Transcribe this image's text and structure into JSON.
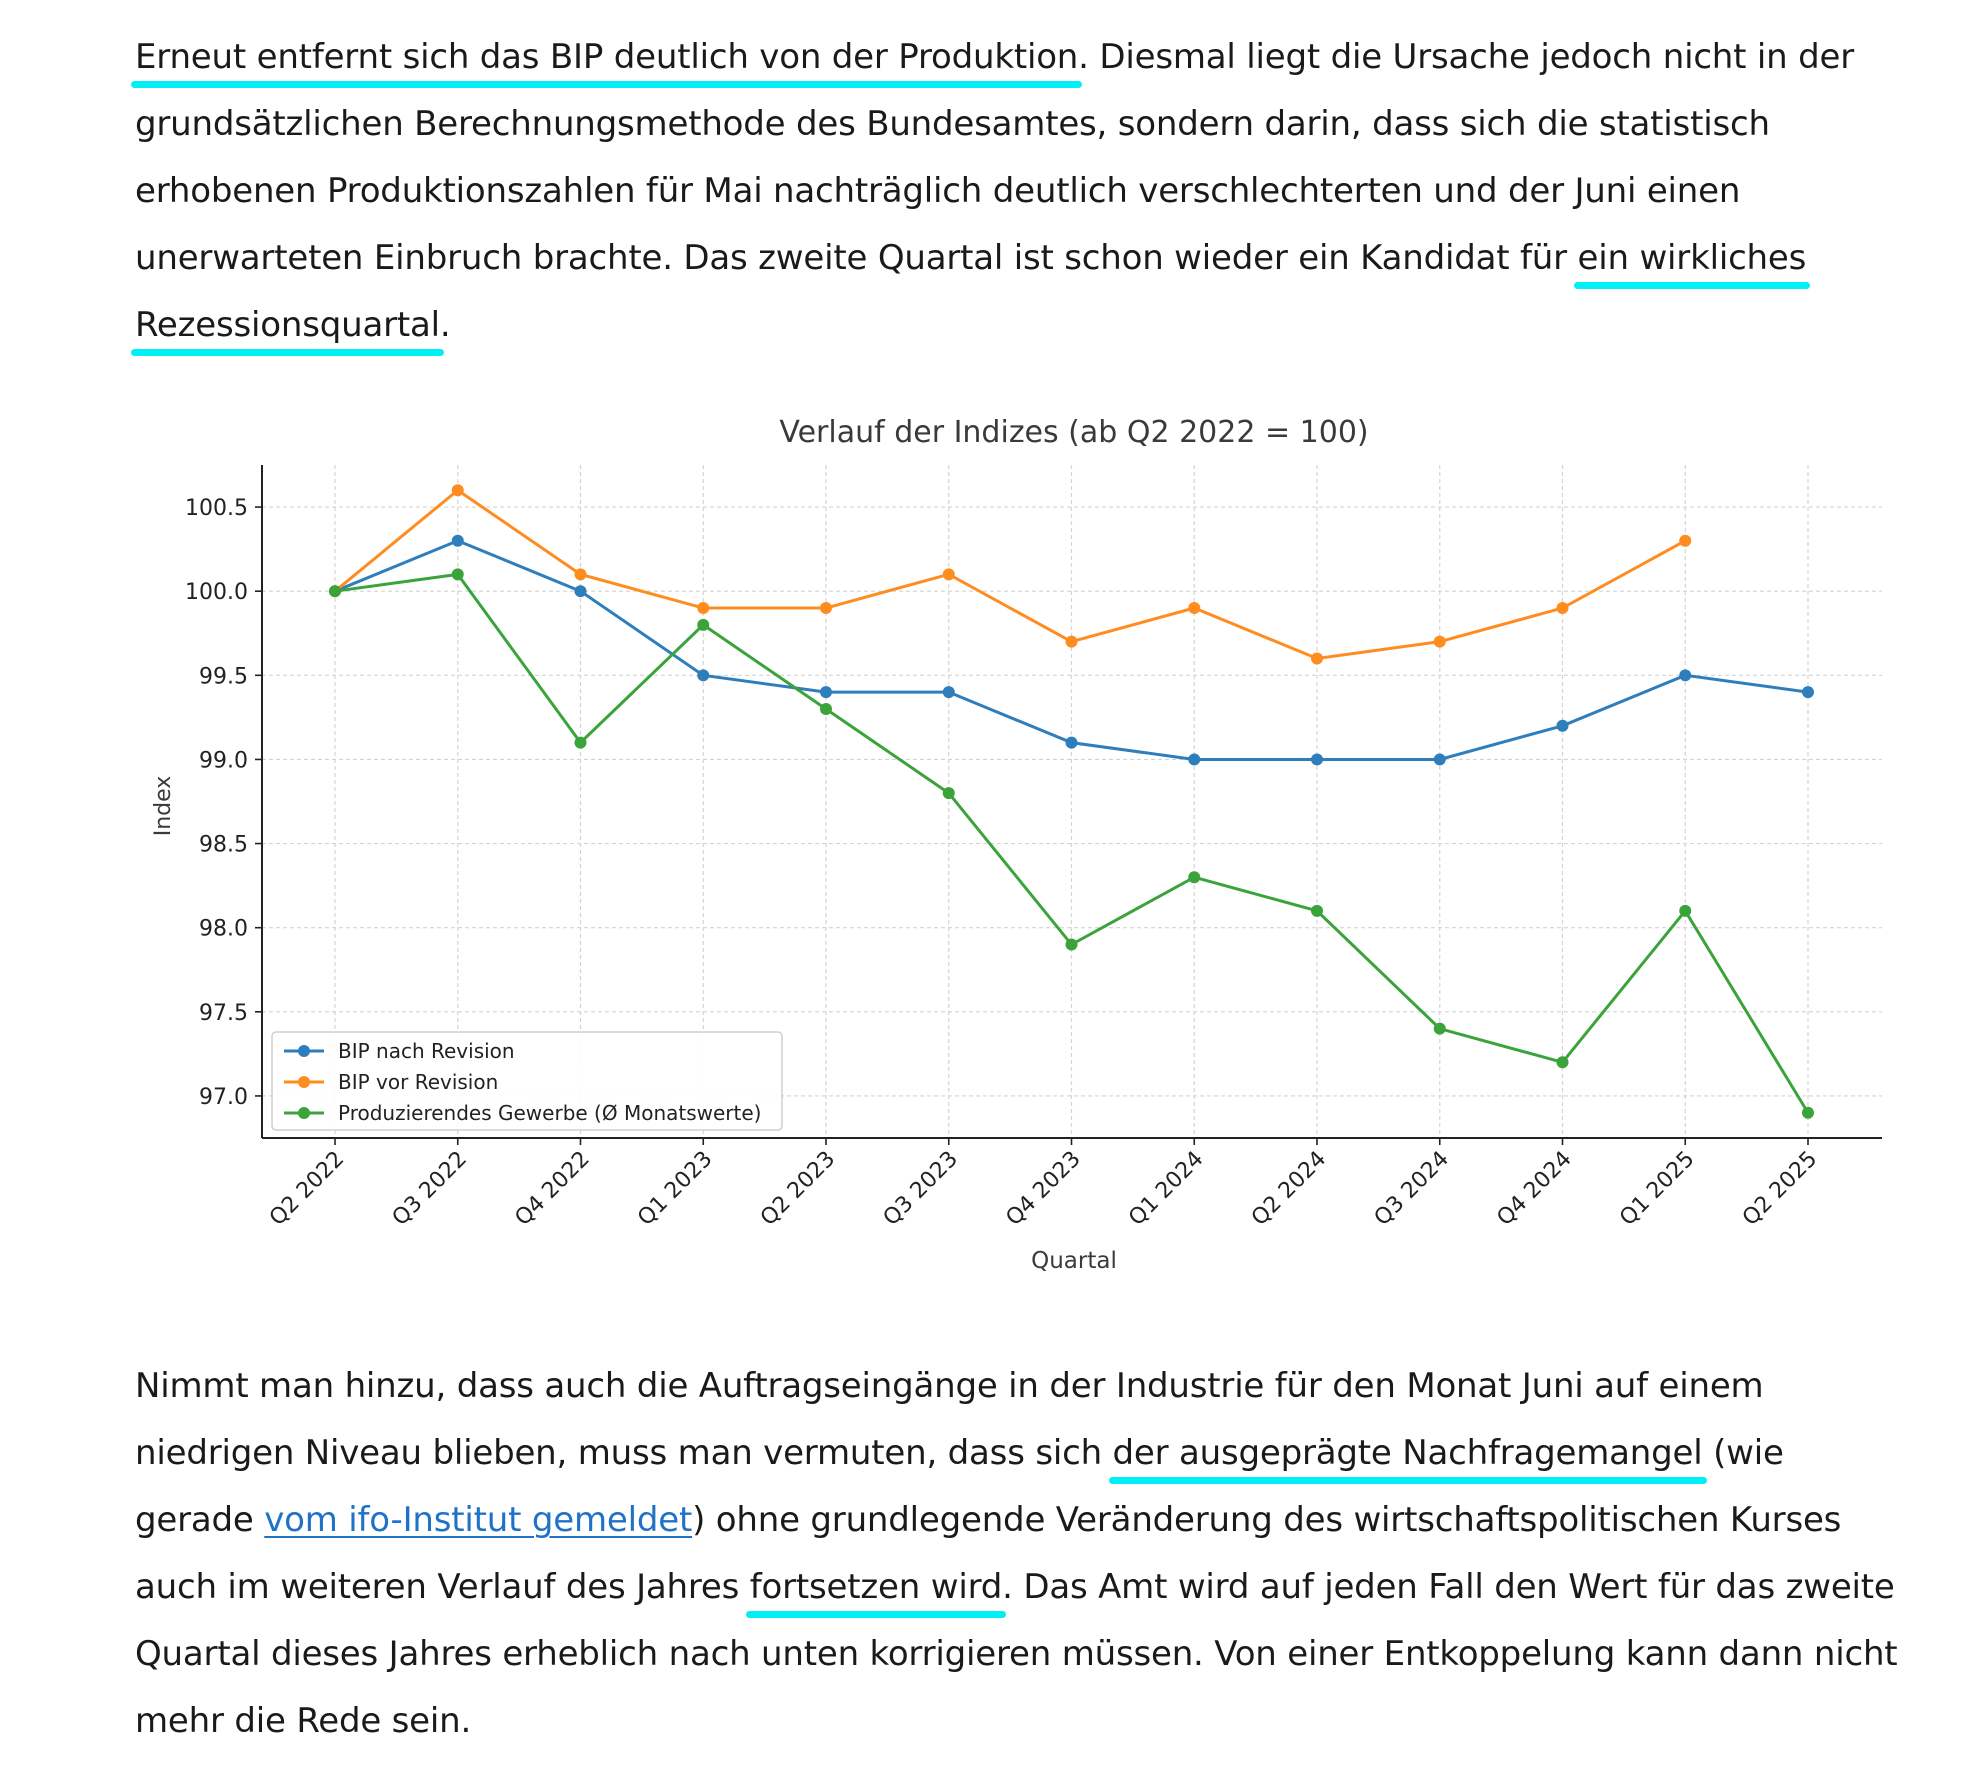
{
  "paragraph1": {
    "hl1": "Erneut entfernt sich das BIP deutlich von der Produktion",
    "t1": ". Diesmal liegt die Ursache jedoch nicht in der grundsätzlichen Berechnungsmethode des Bundesamtes, sondern darin, dass sich die statistisch erhobenen Produktionszahlen für Mai nachträglich deutlich verschlechterten und der Juni einen unerwarteten Einbruch brachte. Das zweite Quartal ist schon wieder ein Kandidat für ",
    "hl2": "ein wirkliches Rezessionsquartal",
    "t2": "."
  },
  "paragraph2": {
    "t1": "Nimmt man hinzu, dass auch die Auftragseingänge in der Industrie für den Monat Juni auf einem niedrigen Niveau blieben, muss man vermuten, dass sich ",
    "hl1": "der ausgeprägte Nachfragemangel",
    "t2": " (wie gerade ",
    "link": "vom ifo-Institut gemeldet",
    "t3": ") ohne grundlegende Veränderung des wirtschaftspolitischen Kurses auch im weiteren Verlauf des Jahres ",
    "hl2": "fortsetzen wird",
    "t4": ". Das Amt wird auf jeden Fall den Wert für das zweite Quartal dieses Jahres erheblich nach unten korrigieren müssen. Von einer Entkoppelung kann dann nicht mehr die Rede sein."
  },
  "colors": {
    "highlight": "#00f0f5",
    "link": "#1f72c8"
  },
  "chart_data": {
    "type": "line",
    "title": "Verlauf der Indizes (ab Q2 2022 = 100)",
    "xlabel": "Quartal",
    "ylabel": "Index",
    "categories": [
      "Q2 2022",
      "Q3 2022",
      "Q4 2022",
      "Q1 2023",
      "Q2 2023",
      "Q3 2023",
      "Q4 2023",
      "Q1 2024",
      "Q2 2024",
      "Q3 2024",
      "Q4 2024",
      "Q1 2025",
      "Q2 2025"
    ],
    "yticks": [
      "97.0",
      "97.5",
      "98.0",
      "98.5",
      "99.0",
      "99.5",
      "100.0",
      "100.5"
    ],
    "ylim": [
      96.75,
      100.75
    ],
    "grid": true,
    "legend_position": "lower-left",
    "series": [
      {
        "name": "BIP nach Revision",
        "color": "#2f7ebc",
        "values": [
          100.0,
          100.3,
          100.0,
          99.5,
          99.4,
          99.4,
          99.1,
          99.0,
          99.0,
          99.0,
          99.2,
          99.5,
          99.4
        ]
      },
      {
        "name": "BIP vor Revision",
        "color": "#ff8c1f",
        "values": [
          100.0,
          100.6,
          100.1,
          99.9,
          99.9,
          100.1,
          99.7,
          99.9,
          99.6,
          99.7,
          99.9,
          100.3,
          null
        ]
      },
      {
        "name": "Produzierendes Gewerbe (Ø Monatswerte)",
        "color": "#3aa33a",
        "values": [
          100.0,
          100.1,
          99.1,
          99.8,
          99.3,
          98.8,
          97.9,
          98.3,
          98.1,
          97.4,
          97.2,
          98.1,
          96.9
        ]
      }
    ]
  }
}
